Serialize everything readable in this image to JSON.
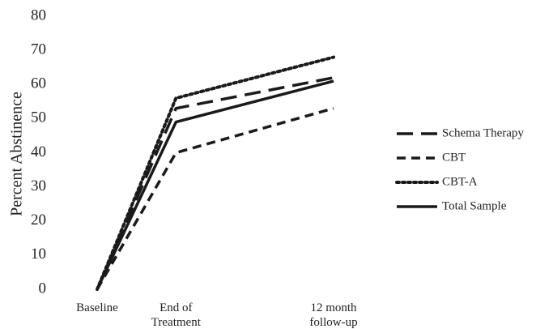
{
  "chart_data": {
    "type": "line",
    "title": "",
    "xlabel": "",
    "ylabel": "Percent Abstinence",
    "ylim": [
      0,
      80
    ],
    "yticks": [
      0,
      10,
      20,
      30,
      40,
      50,
      60,
      70,
      80
    ],
    "grid": false,
    "legend_position": "right",
    "categories": [
      [
        "Baseline"
      ],
      [
        "End of",
        "Treatment"
      ],
      [
        "12 month",
        "follow-up"
      ]
    ],
    "x": [
      0,
      1,
      3
    ],
    "series": [
      {
        "name": "Schema Therapy",
        "values": [
          0,
          53,
          62
        ],
        "style": "long-dash",
        "color": "#1a1a1a"
      },
      {
        "name": "CBT",
        "values": [
          0,
          40,
          53
        ],
        "style": "dash",
        "color": "#1a1a1a"
      },
      {
        "name": "CBT-A",
        "values": [
          0,
          56,
          68
        ],
        "style": "dot",
        "color": "#1a1a1a"
      },
      {
        "name": "Total Sample",
        "values": [
          0,
          49,
          61
        ],
        "style": "solid",
        "color": "#1a1a1a"
      }
    ]
  }
}
